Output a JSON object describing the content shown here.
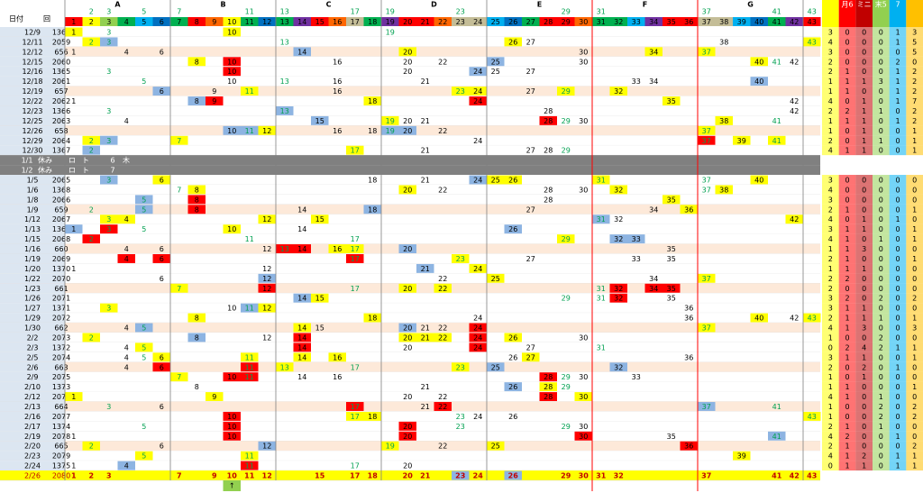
{
  "header": {
    "groups": [
      "A",
      "B",
      "C",
      "D",
      "E",
      "F",
      "G"
    ],
    "date_label": "日付",
    "draw_label": "回",
    "primes": [
      2,
      3,
      5,
      7,
      11,
      13,
      17,
      19,
      23,
      29,
      31,
      37,
      41,
      43
    ],
    "numbers": [
      1,
      2,
      3,
      4,
      5,
      6,
      7,
      8,
      9,
      10,
      11,
      12,
      13,
      14,
      15,
      16,
      17,
      18,
      19,
      20,
      21,
      22,
      23,
      24,
      25,
      26,
      27,
      28,
      29,
      30,
      31,
      32,
      33,
      34,
      35,
      36,
      37,
      38,
      39,
      40,
      41,
      42,
      43
    ],
    "colors": [
      "#ff0000",
      "#ffff00",
      "#92d050",
      "#00b050",
      "#00b0f0",
      "#0070c0",
      "#00b050",
      "#ff0000",
      "#ff6600",
      "#ffff00",
      "#00b050",
      "#0070c0",
      "#00b050",
      "#7030a0",
      "#ff0000",
      "#ff6600",
      "#c4bd97",
      "#00b050",
      "#7030a0",
      "#ff0000",
      "#ff0000",
      "#ff6600",
      "#c4bd97",
      "#c4bd97",
      "#00b0f0",
      "#0070c0",
      "#00b050",
      "#ff0000",
      "#ff0000",
      "#ff6600",
      "#00b050",
      "#00b050",
      "#00b0f0",
      "#7030a0",
      "#ff0000",
      "#ff0000",
      "#c4bd97",
      "#c4bd97",
      "#00b0f0",
      "#0070c0",
      "#00b050",
      "#7030a0",
      "#ff0000"
    ],
    "right_labels": [
      "月6",
      "ミニ",
      "末5",
      "7"
    ],
    "right_colors": [
      "#ffff00",
      "#ff0000",
      "#c00000",
      "#92d050",
      "#00b0f0",
      "#ffc000"
    ]
  },
  "palette": {
    "y": "#ffff00",
    "r": "#ff0000",
    "b": "#8db4e2"
  },
  "rows": [
    {
      "date": "12/9",
      "draw": "1364",
      "cells": [
        [
          1,
          "y"
        ],
        3,
        [
          10,
          "y"
        ],
        19
      ],
      "right": [
        3,
        0,
        0,
        0,
        1,
        3
      ]
    },
    {
      "date": "12/11",
      "draw": "2059",
      "cells": [
        [
          2,
          "y"
        ],
        [
          3,
          "b"
        ],
        13,
        [
          26,
          "y"
        ],
        27,
        38,
        [
          43,
          "y"
        ]
      ],
      "right": [
        4,
        0,
        0,
        0,
        1,
        5
      ]
    },
    {
      "date": "12/12",
      "draw": "656",
      "cells": [
        1,
        4,
        6,
        [
          14,
          "b"
        ],
        [
          20,
          "y"
        ],
        30,
        [
          34,
          "y"
        ],
        [
          37,
          "y"
        ]
      ],
      "right": [
        3,
        0,
        0,
        0,
        0,
        5
      ]
    },
    {
      "date": "12/15",
      "draw": "2060",
      "cells": [
        [
          8,
          "y"
        ],
        [
          10,
          "r"
        ],
        16,
        20,
        22,
        [
          25,
          "b"
        ],
        30,
        [
          40,
          "y"
        ],
        41,
        42
      ],
      "right": [
        2,
        0,
        0,
        0,
        2,
        0
      ]
    },
    {
      "date": "12/16",
      "draw": "1365",
      "cells": [
        3,
        [
          10,
          "r"
        ],
        20,
        [
          24,
          "b"
        ],
        25,
        27
      ],
      "right": [
        2,
        1,
        0,
        0,
        1,
        2
      ]
    },
    {
      "date": "12/18",
      "draw": "2061",
      "cells": [
        5,
        10,
        13,
        16,
        21,
        33,
        34,
        [
          40,
          "b"
        ]
      ],
      "right": [
        1,
        1,
        1,
        3,
        1,
        2
      ]
    },
    {
      "date": "12/19",
      "draw": "657",
      "cells": [
        [
          6,
          "b"
        ],
        9,
        [
          11,
          "y"
        ],
        16,
        [
          23,
          "y"
        ],
        [
          24,
          "y"
        ],
        27,
        [
          29,
          "y"
        ],
        [
          32,
          "y"
        ]
      ],
      "right": [
        1,
        1,
        0,
        0,
        1,
        2
      ]
    },
    {
      "date": "12/22",
      "draw": "2062",
      "cells": [
        1,
        [
          8,
          "b"
        ],
        [
          9,
          "r"
        ],
        [
          18,
          "y"
        ],
        [
          24,
          "r"
        ],
        [
          35,
          "y"
        ],
        42
      ],
      "right": [
        4,
        0,
        1,
        0,
        1,
        7
      ]
    },
    {
      "date": "12/23",
      "draw": "1366",
      "cells": [
        3,
        [
          13,
          "b"
        ],
        28,
        42
      ],
      "right": [
        2,
        2,
        1,
        1,
        0,
        2
      ]
    },
    {
      "date": "12/25",
      "draw": "2063",
      "cells": [
        4,
        [
          15,
          "b"
        ],
        [
          19,
          "y"
        ],
        20,
        21,
        [
          28,
          "r"
        ],
        29,
        30,
        [
          38,
          "y"
        ],
        41
      ],
      "right": [
        1,
        1,
        1,
        0,
        1,
        2
      ]
    },
    {
      "date": "12/26",
      "draw": "658",
      "cells": [
        [
          10,
          "b"
        ],
        [
          11,
          "b"
        ],
        [
          12,
          "y"
        ],
        16,
        18,
        [
          19,
          "b"
        ],
        [
          20,
          "b"
        ],
        22,
        [
          37,
          "y"
        ]
      ],
      "right": [
        1,
        0,
        1,
        0,
        0,
        1
      ]
    },
    {
      "date": "12/29",
      "draw": "2064",
      "cells": [
        [
          2,
          "y"
        ],
        [
          3,
          "b"
        ],
        [
          7,
          "y"
        ],
        24,
        [
          37,
          "r"
        ],
        [
          39,
          "y"
        ],
        [
          41,
          "y"
        ]
      ],
      "right": [
        2,
        0,
        1,
        1,
        0,
        1
      ]
    },
    {
      "date": "12/30",
      "draw": "1367",
      "cells": [
        [
          2,
          "b"
        ],
        [
          17,
          "y"
        ],
        21,
        27,
        28,
        29
      ],
      "right": [
        4,
        1,
        1,
        0,
        0,
        1
      ]
    },
    {
      "date": "1/1",
      "texts": [
        "休み",
        "ロ",
        "ト",
        "6",
        "木"
      ]
    },
    {
      "date": "1/2",
      "texts": [
        "休み",
        "ロ",
        "ト",
        "7"
      ]
    },
    {
      "date": "1/5",
      "draw": "2065",
      "cells": [
        [
          3,
          "b"
        ],
        [
          6,
          "y"
        ],
        18,
        21,
        [
          24,
          "b"
        ],
        [
          25,
          "y"
        ],
        [
          26,
          "y"
        ],
        [
          31,
          "y"
        ],
        37,
        [
          40,
          "y"
        ]
      ],
      "right": [
        3,
        0,
        0,
        0,
        0,
        0
      ]
    },
    {
      "date": "1/6",
      "draw": "1368",
      "cells": [
        7,
        [
          8,
          "y"
        ],
        [
          20,
          "y"
        ],
        22,
        28,
        30,
        [
          32,
          "y"
        ],
        37,
        [
          38,
          "y"
        ]
      ],
      "right": [
        4,
        0,
        0,
        0,
        0,
        0
      ]
    },
    {
      "date": "1/8",
      "draw": "2066",
      "cells": [
        [
          5,
          "b"
        ],
        [
          8,
          "r"
        ],
        28,
        [
          35,
          "y"
        ]
      ],
      "right": [
        3,
        0,
        0,
        0,
        0,
        0
      ]
    },
    {
      "date": "1/9",
      "draw": "659",
      "cells": [
        2,
        [
          5,
          "b"
        ],
        [
          8,
          "r"
        ],
        14,
        [
          18,
          "b"
        ],
        27,
        34,
        [
          36,
          "y"
        ]
      ],
      "right": [
        2,
        1,
        0,
        0,
        0,
        1
      ]
    },
    {
      "date": "1/12",
      "draw": "2067",
      "cells": [
        [
          3,
          "y"
        ],
        [
          4,
          "y"
        ],
        [
          12,
          "y"
        ],
        [
          15,
          "y"
        ],
        [
          31,
          "b"
        ],
        32,
        [
          42,
          "y"
        ]
      ],
      "right": [
        4,
        0,
        1,
        0,
        1,
        0
      ]
    },
    {
      "date": "1/13",
      "draw": "1369",
      "cells": [
        [
          1,
          "b"
        ],
        [
          3,
          "r"
        ],
        5,
        [
          10,
          "y"
        ],
        14,
        [
          26,
          "b"
        ]
      ],
      "right": [
        3,
        1,
        1,
        0,
        0,
        1
      ]
    },
    {
      "date": "1/15",
      "draw": "2068",
      "cells": [
        [
          2,
          "r"
        ],
        11,
        17,
        [
          29,
          "y"
        ],
        [
          32,
          "b"
        ],
        [
          33,
          "b"
        ]
      ],
      "right": [
        4,
        1,
        0,
        1,
        0,
        1
      ]
    },
    {
      "date": "1/16",
      "draw": "660",
      "cells": [
        4,
        6,
        12,
        [
          13,
          "r"
        ],
        [
          14,
          "r"
        ],
        [
          16,
          "y"
        ],
        [
          17,
          "y"
        ],
        [
          20,
          "b"
        ],
        35
      ],
      "right": [
        1,
        1,
        3,
        0,
        0,
        0
      ]
    },
    {
      "date": "1/19",
      "draw": "2069",
      "cells": [
        [
          4,
          "r"
        ],
        [
          6,
          "r"
        ],
        [
          17,
          "r"
        ],
        [
          23,
          "y"
        ],
        27,
        33,
        35
      ],
      "right": [
        2,
        1,
        0,
        0,
        0,
        1
      ]
    },
    {
      "date": "1/20",
      "draw": "1370",
      "cells": [
        1,
        12,
        [
          21,
          "b"
        ],
        [
          24,
          "y"
        ]
      ],
      "right": [
        1,
        1,
        1,
        0,
        0,
        0
      ]
    },
    {
      "date": "1/22",
      "draw": "2070",
      "cells": [
        6,
        [
          12,
          "b"
        ],
        22,
        [
          25,
          "y"
        ],
        34,
        [
          37,
          "y"
        ]
      ],
      "right": [
        2,
        2,
        0,
        0,
        0,
        0
      ]
    },
    {
      "date": "1/23",
      "draw": "661",
      "cells": [
        [
          7,
          "y"
        ],
        [
          12,
          "r"
        ],
        17,
        [
          20,
          "y"
        ],
        [
          22,
          "y"
        ],
        31,
        [
          32,
          "r"
        ],
        [
          34,
          "r"
        ],
        [
          35,
          "r"
        ]
      ],
      "right": [
        2,
        0,
        0,
        0,
        0,
        0
      ]
    },
    {
      "date": "1/26",
      "draw": "2071",
      "cells": [
        [
          14,
          "b"
        ],
        [
          15,
          "y"
        ],
        29,
        31,
        [
          32,
          "r"
        ],
        35
      ],
      "right": [
        3,
        2,
        0,
        2,
        0,
        2
      ]
    },
    {
      "date": "1/27",
      "draw": "1371",
      "cells": [
        [
          3,
          "y"
        ],
        10,
        [
          11,
          "b"
        ],
        [
          12,
          "y"
        ],
        36
      ],
      "right": [
        3,
        1,
        1,
        0,
        0,
        0
      ]
    },
    {
      "date": "1/29",
      "draw": "2072",
      "cells": [
        [
          8,
          "y"
        ],
        [
          18,
          "y"
        ],
        24,
        36,
        [
          40,
          "y"
        ],
        42,
        [
          43,
          "y"
        ]
      ],
      "right": [
        2,
        1,
        1,
        1,
        0,
        1
      ]
    },
    {
      "date": "1/30",
      "draw": "662",
      "cells": [
        4,
        [
          5,
          "b"
        ],
        [
          14,
          "y"
        ],
        15,
        [
          20,
          "b"
        ],
        21,
        22,
        [
          24,
          "r"
        ],
        [
          37,
          "y"
        ]
      ],
      "right": [
        4,
        1,
        3,
        0,
        0,
        3
      ]
    },
    {
      "date": "2/2",
      "draw": "2073",
      "cells": [
        [
          2,
          "y"
        ],
        [
          8,
          "b"
        ],
        12,
        [
          14,
          "r"
        ],
        [
          20,
          "y"
        ],
        [
          21,
          "y"
        ],
        [
          22,
          "y"
        ],
        [
          24,
          "r"
        ],
        [
          26,
          "y"
        ],
        30
      ],
      "right": [
        1,
        0,
        0,
        2,
        0,
        0
      ]
    },
    {
      "date": "2/3",
      "draw": "1372",
      "cells": [
        4,
        [
          5,
          "y"
        ],
        [
          14,
          "r"
        ],
        20,
        [
          24,
          "r"
        ],
        27,
        31
      ],
      "right": [
        0,
        2,
        4,
        2,
        1,
        1
      ]
    },
    {
      "date": "2/5",
      "draw": "2074",
      "cells": [
        4,
        5,
        [
          6,
          "y"
        ],
        [
          11,
          "y"
        ],
        [
          14,
          "y"
        ],
        [
          16,
          "y"
        ],
        26,
        [
          27,
          "y"
        ],
        36
      ],
      "right": [
        3,
        1,
        1,
        0,
        0,
        1
      ]
    },
    {
      "date": "2/6",
      "draw": "663",
      "cells": [
        4,
        [
          6,
          "r"
        ],
        [
          11,
          "r"
        ],
        [
          13,
          "y"
        ],
        17,
        [
          23,
          "y"
        ],
        [
          25,
          "b"
        ],
        [
          32,
          "b"
        ]
      ],
      "right": [
        2,
        0,
        2,
        0,
        1,
        0
      ]
    },
    {
      "date": "2/9",
      "draw": "2075",
      "cells": [
        [
          7,
          "y"
        ],
        [
          10,
          "r"
        ],
        [
          11,
          "r"
        ],
        14,
        16,
        [
          28,
          "r"
        ],
        29,
        30,
        33
      ],
      "right": [
        1,
        0,
        1,
        0,
        0,
        0
      ]
    },
    {
      "date": "2/10",
      "draw": "1373",
      "cells": [
        8,
        21,
        [
          26,
          "b"
        ],
        [
          28,
          "y"
        ],
        29
      ],
      "right": [
        1,
        1,
        0,
        0,
        0,
        1
      ]
    },
    {
      "date": "2/12",
      "draw": "2076",
      "cells": [
        [
          1,
          "y"
        ],
        [
          9,
          "y"
        ],
        20,
        22,
        [
          28,
          "r"
        ],
        [
          30,
          "y"
        ]
      ],
      "right": [
        4,
        1,
        0,
        1,
        0,
        0
      ]
    },
    {
      "date": "2/13",
      "draw": "664",
      "cells": [
        3,
        6,
        [
          17,
          "r"
        ],
        21,
        [
          22,
          "r"
        ],
        [
          37,
          "b"
        ],
        41
      ],
      "right": [
        1,
        0,
        0,
        2,
        0,
        2
      ]
    },
    {
      "date": "2/16",
      "draw": "2077",
      "cells": [
        [
          10,
          "r"
        ],
        [
          17,
          "y"
        ],
        [
          18,
          "y"
        ],
        23,
        24,
        26,
        [
          43,
          "y"
        ]
      ],
      "right": [
        1,
        0,
        0,
        2,
        0,
        2
      ]
    },
    {
      "date": "2/17",
      "draw": "1374",
      "cells": [
        5,
        [
          10,
          "r"
        ],
        [
          20,
          "r"
        ],
        23,
        29,
        30
      ],
      "right": [
        2,
        1,
        0,
        1,
        0,
        0
      ]
    },
    {
      "date": "2/19",
      "draw": "2078",
      "cells": [
        1,
        [
          10,
          "r"
        ],
        [
          20,
          "r"
        ],
        [
          30,
          "r"
        ],
        35,
        [
          41,
          "b"
        ]
      ],
      "right": [
        4,
        2,
        0,
        0,
        1,
        0
      ]
    },
    {
      "date": "2/20",
      "draw": "665",
      "cells": [
        [
          2,
          "y"
        ],
        6,
        [
          12,
          "b"
        ],
        [
          19,
          "y"
        ],
        22,
        [
          25,
          "y"
        ],
        [
          36,
          "r"
        ]
      ],
      "right": [
        2,
        1,
        0,
        0,
        0,
        2
      ]
    },
    {
      "date": "2/23",
      "draw": "2079",
      "cells": [
        [
          5,
          "y"
        ],
        [
          11,
          "y"
        ],
        [
          39,
          "y"
        ]
      ],
      "right": [
        4,
        1,
        2,
        0,
        1,
        1
      ]
    },
    {
      "date": "2/24",
      "draw": "1375",
      "cells": [
        1,
        [
          4,
          "b"
        ],
        [
          11,
          "r"
        ],
        17,
        20
      ],
      "right": [
        0,
        1,
        1,
        0,
        1,
        1
      ]
    },
    {
      "date": "2/26",
      "draw": "2080",
      "today": true,
      "cells": [
        1,
        2,
        3,
        7,
        9,
        10,
        11,
        12,
        15,
        17,
        18,
        20,
        21,
        [
          23,
          "b"
        ],
        24,
        [
          26,
          "b"
        ],
        29,
        30,
        31,
        32,
        37,
        41,
        42,
        43
      ]
    }
  ],
  "footer_arrow": "↑"
}
